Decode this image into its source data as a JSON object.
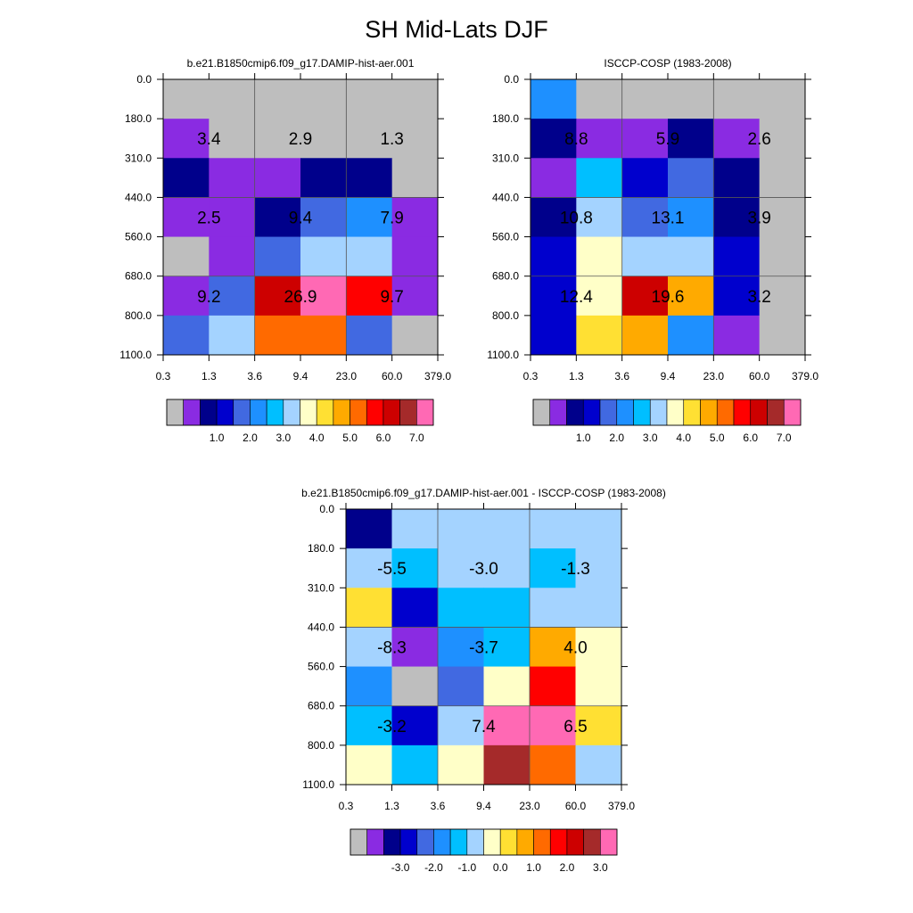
{
  "page": {
    "title": "SH Mid-Lats DJF"
  },
  "chart_data": [
    {
      "type": "heatmap",
      "title": "b.e21.B1850cmip6.f09_g17.DAMIP-hist-aer.001",
      "xticks": [
        "0.3",
        "1.3",
        "3.6",
        "9.4",
        "23.0",
        "60.0",
        "379.0"
      ],
      "yticks": [
        "0.0",
        "180.0",
        "310.0",
        "440.0",
        "560.0",
        "680.0",
        "800.0",
        "1100.0"
      ],
      "cells": [
        [
          "#bebebe",
          "#bebebe",
          "#bebebe",
          "#bebebe",
          "#bebebe",
          "#bebebe"
        ],
        [
          "#8a2be2",
          "#bebebe",
          "#bebebe",
          "#bebebe",
          "#bebebe",
          "#bebebe"
        ],
        [
          "#00008b",
          "#8a2be2",
          "#8a2be2",
          "#00008b",
          "#00008b",
          "#bebebe"
        ],
        [
          "#8a2be2",
          "#8a2be2",
          "#00008b",
          "#4169e1",
          "#1e90ff",
          "#8a2be2"
        ],
        [
          "#bebebe",
          "#8a2be2",
          "#4169e1",
          "#a4d3ff",
          "#a4d3ff",
          "#8a2be2"
        ],
        [
          "#8a2be2",
          "#4169e1",
          "#cd0000",
          "#ff69b4",
          "#ff0000",
          "#8a2be2"
        ],
        [
          "#4169e1",
          "#a4d3ff",
          "#ff6a00",
          "#ff6a00",
          "#4169e1",
          "#bebebe"
        ]
      ],
      "annotations": [
        {
          "row": 0,
          "col": 0,
          "text": "3.4"
        },
        {
          "row": 0,
          "col": 1,
          "text": "2.9"
        },
        {
          "row": 0,
          "col": 2,
          "text": "1.3"
        },
        {
          "row": 1,
          "col": 0,
          "text": "2.5"
        },
        {
          "row": 1,
          "col": 1,
          "text": "9.4"
        },
        {
          "row": 1,
          "col": 2,
          "text": "7.9"
        },
        {
          "row": 2,
          "col": 0,
          "text": "9.2"
        },
        {
          "row": 2,
          "col": 1,
          "text": "26.9"
        },
        {
          "row": 2,
          "col": 2,
          "text": "9.7"
        }
      ],
      "colorbar": {
        "colors": [
          "#bebebe",
          "#8a2be2",
          "#00008b",
          "#0000cd",
          "#4169e1",
          "#1e90ff",
          "#00bfff",
          "#a4d3ff",
          "#ffffc8",
          "#ffe033",
          "#ffaa00",
          "#ff6a00",
          "#ff0000",
          "#cd0000",
          "#a52a2a",
          "#ff69b4"
        ],
        "labels": [
          "1.0",
          "2.0",
          "3.0",
          "4.0",
          "5.0",
          "6.0",
          "7.0"
        ]
      }
    },
    {
      "type": "heatmap",
      "title": "ISCCP-COSP (1983-2008)",
      "xticks": [
        "0.3",
        "1.3",
        "3.6",
        "9.4",
        "23.0",
        "60.0",
        "379.0"
      ],
      "yticks": [
        "0.0",
        "180.0",
        "310.0",
        "440.0",
        "560.0",
        "680.0",
        "800.0",
        "1100.0"
      ],
      "cells": [
        [
          "#1e90ff",
          "#bebebe",
          "#bebebe",
          "#bebebe",
          "#bebebe",
          "#bebebe"
        ],
        [
          "#00008b",
          "#8a2be2",
          "#8a2be2",
          "#00008b",
          "#8a2be2",
          "#bebebe"
        ],
        [
          "#8a2be2",
          "#00bfff",
          "#0000cd",
          "#4169e1",
          "#00008b",
          "#bebebe"
        ],
        [
          "#00008b",
          "#a4d3ff",
          "#4169e1",
          "#1e90ff",
          "#00008b",
          "#bebebe"
        ],
        [
          "#0000cd",
          "#ffffc8",
          "#a4d3ff",
          "#a4d3ff",
          "#0000cd",
          "#bebebe"
        ],
        [
          "#0000cd",
          "#ffffc8",
          "#cd0000",
          "#ffaa00",
          "#0000cd",
          "#bebebe"
        ],
        [
          "#0000cd",
          "#ffe033",
          "#ffaa00",
          "#1e90ff",
          "#8a2be2",
          "#bebebe"
        ]
      ],
      "annotations": [
        {
          "row": 0,
          "col": 0,
          "text": "8.8"
        },
        {
          "row": 0,
          "col": 1,
          "text": "5.9"
        },
        {
          "row": 0,
          "col": 2,
          "text": "2.6"
        },
        {
          "row": 1,
          "col": 0,
          "text": "10.8"
        },
        {
          "row": 1,
          "col": 1,
          "text": "13.1"
        },
        {
          "row": 1,
          "col": 2,
          "text": "3.9"
        },
        {
          "row": 2,
          "col": 0,
          "text": "12.4"
        },
        {
          "row": 2,
          "col": 1,
          "text": "19.6"
        },
        {
          "row": 2,
          "col": 2,
          "text": "3.2"
        }
      ],
      "colorbar": {
        "colors": [
          "#bebebe",
          "#8a2be2",
          "#00008b",
          "#0000cd",
          "#4169e1",
          "#1e90ff",
          "#00bfff",
          "#a4d3ff",
          "#ffffc8",
          "#ffe033",
          "#ffaa00",
          "#ff6a00",
          "#ff0000",
          "#cd0000",
          "#a52a2a",
          "#ff69b4"
        ],
        "labels": [
          "1.0",
          "2.0",
          "3.0",
          "4.0",
          "5.0",
          "6.0",
          "7.0"
        ]
      }
    },
    {
      "type": "heatmap",
      "title": "b.e21.B1850cmip6.f09_g17.DAMIP-hist-aer.001 - ISCCP-COSP (1983-2008)",
      "xticks": [
        "0.3",
        "1.3",
        "3.6",
        "9.4",
        "23.0",
        "60.0",
        "379.0"
      ],
      "yticks": [
        "0.0",
        "180.0",
        "310.0",
        "440.0",
        "560.0",
        "680.0",
        "800.0",
        "1100.0"
      ],
      "cells": [
        [
          "#00008b",
          "#a4d3ff",
          "#a4d3ff",
          "#a4d3ff",
          "#a4d3ff",
          "#a4d3ff"
        ],
        [
          "#a4d3ff",
          "#00bfff",
          "#a4d3ff",
          "#a4d3ff",
          "#00bfff",
          "#a4d3ff"
        ],
        [
          "#ffe033",
          "#0000cd",
          "#00bfff",
          "#00bfff",
          "#a4d3ff",
          "#a4d3ff"
        ],
        [
          "#a4d3ff",
          "#8a2be2",
          "#1e90ff",
          "#00bfff",
          "#ffaa00",
          "#ffffc8"
        ],
        [
          "#1e90ff",
          "#bebebe",
          "#4169e1",
          "#ffffc8",
          "#ff0000",
          "#ffffc8"
        ],
        [
          "#00bfff",
          "#0000cd",
          "#a4d3ff",
          "#ff69b4",
          "#ff69b4",
          "#ffe033"
        ],
        [
          "#ffffc8",
          "#00bfff",
          "#ffffc8",
          "#a52a2a",
          "#ff6a00",
          "#a4d3ff"
        ]
      ],
      "annotations": [
        {
          "row": 0,
          "col": 0,
          "text": "-5.5"
        },
        {
          "row": 0,
          "col": 1,
          "text": "-3.0"
        },
        {
          "row": 0,
          "col": 2,
          "text": "-1.3"
        },
        {
          "row": 1,
          "col": 0,
          "text": "-8.3"
        },
        {
          "row": 1,
          "col": 1,
          "text": "-3.7"
        },
        {
          "row": 1,
          "col": 2,
          "text": "4.0"
        },
        {
          "row": 2,
          "col": 0,
          "text": "-3.2"
        },
        {
          "row": 2,
          "col": 1,
          "text": "7.4"
        },
        {
          "row": 2,
          "col": 2,
          "text": "6.5"
        }
      ],
      "colorbar": {
        "colors": [
          "#bebebe",
          "#8a2be2",
          "#00008b",
          "#0000cd",
          "#4169e1",
          "#1e90ff",
          "#00bfff",
          "#a4d3ff",
          "#ffffc8",
          "#ffe033",
          "#ffaa00",
          "#ff6a00",
          "#ff0000",
          "#cd0000",
          "#a52a2a",
          "#ff69b4"
        ],
        "labels": [
          "-3.0",
          "-2.0",
          "-1.0",
          "0.0",
          "1.0",
          "2.0",
          "3.0"
        ]
      }
    }
  ]
}
